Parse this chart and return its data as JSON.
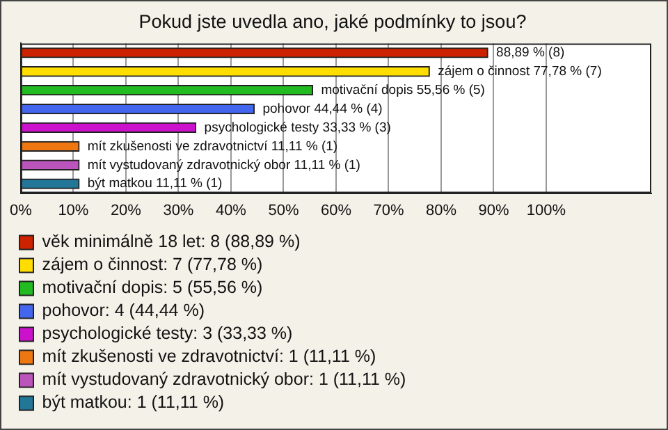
{
  "chart_data": {
    "type": "bar",
    "orientation": "horizontal",
    "title": "Pokud jste uvedla ano, jaké podmínky to jsou?",
    "categories": [
      null,
      null,
      null,
      null,
      null,
      null,
      null,
      null
    ],
    "series": [
      {
        "name": "věk minimálně 18 let: 8 (88,89 %)",
        "color": "#cc2200",
        "values": [
          88.89,
          null,
          null,
          null,
          null,
          null,
          null,
          null
        ],
        "value_labels": [
          "88,89 % (8)",
          null,
          null,
          null,
          null,
          null,
          null,
          null
        ]
      },
      {
        "name": "zájem o činnost: 7 (77,78 %)",
        "color": "#ffdd00",
        "values": [
          null,
          77.78,
          null,
          null,
          null,
          null,
          null,
          null
        ],
        "value_labels": [
          null,
          "zájem o činnost 77,78 % (7)",
          null,
          null,
          null,
          null,
          null,
          null
        ]
      },
      {
        "name": "motivační dopis: 5 (55,56 %)",
        "color": "#22bb22",
        "values": [
          null,
          null,
          55.56,
          null,
          null,
          null,
          null,
          null
        ],
        "value_labels": [
          null,
          null,
          "motivační dopis 55,56 % (5)",
          null,
          null,
          null,
          null,
          null
        ]
      },
      {
        "name": "pohovor: 4 (44,44 %)",
        "color": "#4466ee",
        "values": [
          null,
          null,
          null,
          44.44,
          null,
          null,
          null,
          null
        ],
        "value_labels": [
          null,
          null,
          null,
          "pohovor 44,44 % (4)",
          null,
          null,
          null,
          null
        ]
      },
      {
        "name": "psychologické testy: 3 (33,33 %)",
        "color": "#cc11cc",
        "values": [
          null,
          null,
          null,
          null,
          33.33,
          null,
          null,
          null
        ],
        "value_labels": [
          null,
          null,
          null,
          null,
          "psychologické testy 33,33 % (3)",
          null,
          null,
          null
        ]
      },
      {
        "name": "mít zkušenosti ve zdravotnictví: 1 (11,11 %)",
        "color": "#ee7711",
        "values": [
          null,
          null,
          null,
          null,
          null,
          11.11,
          null,
          null
        ],
        "value_labels": [
          null,
          null,
          null,
          null,
          null,
          "mít zkušenosti ve zdravotnictví 11,11 % (1)",
          null,
          null
        ]
      },
      {
        "name": "mít vystudovaný zdravotnický obor: 1 (11,11 %)",
        "color": "#bb55bb",
        "values": [
          null,
          null,
          null,
          null,
          null,
          null,
          11.11,
          null
        ],
        "value_labels": [
          null,
          null,
          null,
          null,
          null,
          null,
          "mít vystudovaný zdravotnický obor 11,11 % (1)",
          null
        ]
      },
      {
        "name": "být matkou: 1 (11,11 %)",
        "color": "#227799",
        "values": [
          null,
          null,
          null,
          null,
          null,
          null,
          null,
          11.11
        ],
        "value_labels": [
          null,
          null,
          null,
          null,
          null,
          null,
          null,
          "být matkou 11,11 % (1)"
        ]
      }
    ],
    "xlim": [
      0,
      120
    ],
    "xticks": [
      {
        "value": 0,
        "label": "0%"
      },
      {
        "value": 10,
        "label": "10%"
      },
      {
        "value": 20,
        "label": "20%"
      },
      {
        "value": 30,
        "label": "30%"
      },
      {
        "value": 40,
        "label": "40%"
      },
      {
        "value": 50,
        "label": "50%"
      },
      {
        "value": 60,
        "label": "60%"
      },
      {
        "value": 70,
        "label": "70%"
      },
      {
        "value": 80,
        "label": "80%"
      },
      {
        "value": 90,
        "label": "90%"
      },
      {
        "value": 100,
        "label": "100%"
      }
    ],
    "grid": "x",
    "legend": "bottom"
  }
}
